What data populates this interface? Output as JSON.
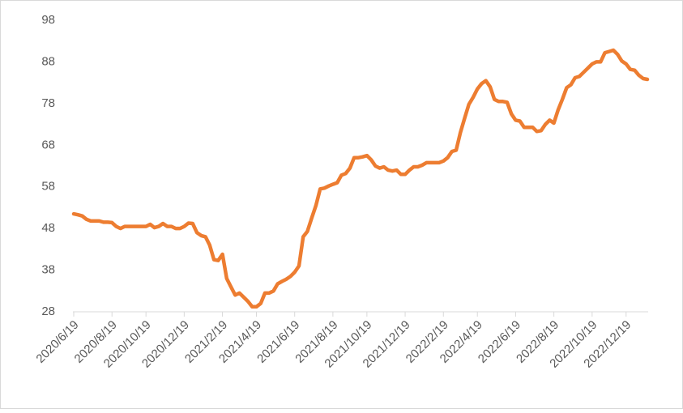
{
  "chart_data": {
    "type": "line",
    "categories": [
      "2020/6/19",
      null,
      null,
      null,
      null,
      null,
      null,
      null,
      null,
      "2020/8/19",
      null,
      null,
      null,
      null,
      null,
      null,
      null,
      "2020/10/19",
      null,
      null,
      null,
      null,
      null,
      null,
      null,
      null,
      "2020/12/19",
      null,
      null,
      null,
      null,
      null,
      null,
      null,
      null,
      "2021/2/19",
      null,
      null,
      null,
      null,
      null,
      null,
      null,
      "2021/4/19",
      null,
      null,
      null,
      null,
      null,
      null,
      null,
      null,
      "2021/6/19",
      null,
      null,
      null,
      null,
      null,
      null,
      null,
      null,
      "2021/8/19",
      null,
      null,
      null,
      null,
      null,
      null,
      null,
      "2021/10/19",
      null,
      null,
      null,
      null,
      null,
      null,
      null,
      null,
      "2021/12/19",
      null,
      null,
      null,
      null,
      null,
      null,
      null,
      null,
      "2022/2/19",
      null,
      null,
      null,
      null,
      null,
      null,
      null,
      "2022/4/19",
      null,
      null,
      null,
      null,
      null,
      null,
      null,
      null,
      "2022/6/19",
      null,
      null,
      null,
      null,
      null,
      null,
      null,
      null,
      "2022/8/19",
      null,
      null,
      null,
      null,
      null,
      null,
      null,
      null,
      "2022/10/19",
      null,
      null,
      null,
      null,
      null,
      null,
      null,
      "2022/12/19",
      null,
      null,
      null,
      null,
      null
    ],
    "series": [
      {
        "color": "#ed7d31",
        "values": [
          51.5,
          51.3,
          51,
          50.2,
          49.8,
          49.8,
          49.8,
          49.5,
          49.5,
          49.4,
          48.5,
          48,
          48.5,
          48.5,
          48.5,
          48.5,
          48.5,
          48.5,
          49,
          48.2,
          48.5,
          49.2,
          48.5,
          48.5,
          48,
          48,
          48.5,
          49.3,
          49.2,
          47,
          46.3,
          46,
          44,
          40.5,
          40.3,
          41.8,
          36,
          34,
          32,
          32.5,
          31.5,
          30.5,
          29.2,
          29.2,
          30,
          32.5,
          32.5,
          33,
          34.7,
          35.3,
          35.8,
          36.5,
          37.5,
          39,
          46,
          47.3,
          50.5,
          53.5,
          57.5,
          57.7,
          58.2,
          58.6,
          59,
          60.8,
          61.2,
          62.5,
          65,
          65,
          65.2,
          65.5,
          64.5,
          63,
          62.5,
          62.8,
          62,
          61.8,
          62,
          61,
          61,
          62,
          62.8,
          62.8,
          63.2,
          63.8,
          63.8,
          63.8,
          63.8,
          64.2,
          65,
          66.5,
          66.8,
          71,
          74.5,
          77.8,
          79.5,
          81.5,
          82.8,
          83.5,
          82,
          79,
          78.5,
          78.5,
          78.3,
          75.5,
          74,
          73.8,
          72.3,
          72.3,
          72.3,
          71.3,
          71.5,
          73,
          74,
          73.3,
          76.5,
          79,
          81.8,
          82.5,
          84.2,
          84.5,
          85.5,
          86.5,
          87.5,
          88,
          88,
          90.2,
          90.5,
          90.8,
          89.8,
          88.2,
          87.5,
          86.2,
          86,
          84.8,
          84,
          83.8
        ]
      }
    ],
    "ylim": [
      28,
      98
    ],
    "yticks": [
      28,
      38,
      48,
      58,
      68,
      78,
      88,
      98
    ],
    "grid": false
  }
}
